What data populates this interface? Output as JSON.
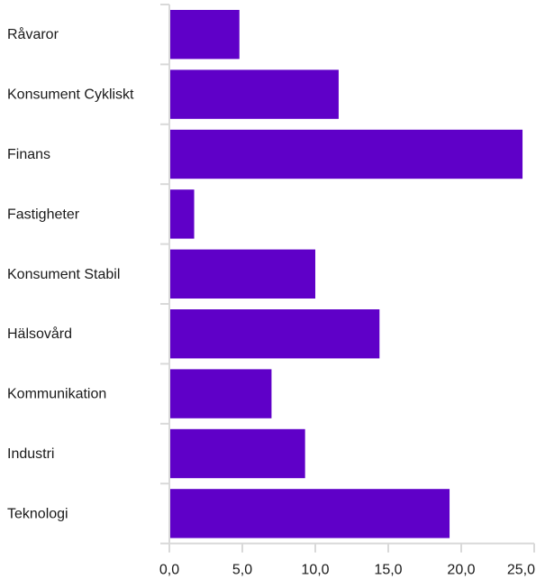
{
  "chart_data": {
    "type": "bar",
    "orientation": "horizontal",
    "categories": [
      "Råvaror",
      "Konsument Cykliskt",
      "Finans",
      "Fastigheter",
      "Konsument Stabil",
      "Hälsovård",
      "Kommunikation",
      "Industri",
      "Teknologi"
    ],
    "values": [
      4.8,
      11.6,
      24.2,
      1.7,
      10.0,
      14.4,
      7.0,
      9.3,
      19.2
    ],
    "xlim": [
      0,
      25
    ],
    "xticks": [
      0,
      5,
      10,
      15,
      20,
      25
    ],
    "xtick_labels": [
      "0,0",
      "5,0",
      "10,0",
      "15,0",
      "20,0",
      "25,0"
    ],
    "grid": false,
    "bar_color": "#5f00c8",
    "axis_color": "#d9d9d9"
  }
}
